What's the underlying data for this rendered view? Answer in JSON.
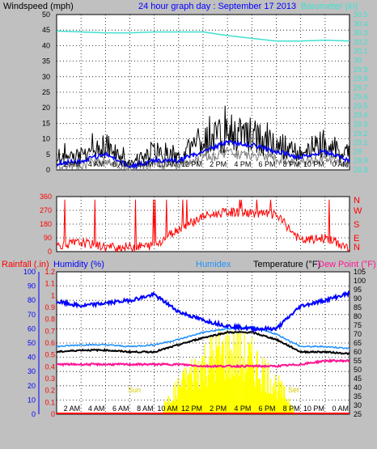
{
  "header": {
    "left_label": "Windspeed (mph)",
    "center_label": "24 hour graph day : September 17 2013",
    "right_label": "Barometer (in)"
  },
  "colors": {
    "background": "#c0c0c0",
    "plot_bg": "#ffffff",
    "wind": "#000000",
    "wind_avg": "#0000ff",
    "gust_gray": "#808080",
    "barometer": "#40e0d0",
    "direction": "#ff0000",
    "rain": "#ff0000",
    "humidity": "#0000ff",
    "humidex": "#1e90ff",
    "temperature": "#000000",
    "dewpoint": "#ff1493",
    "solar": "#ffff00",
    "rain_axis": "#ff0000",
    "humidity_axis": "#0000ff",
    "baro_axis": "#40e0d0"
  },
  "x_ticks": [
    "2 AM",
    "4 AM",
    "6 AM",
    "8 AM",
    "10 AM",
    "12 PM",
    "2 PM",
    "4 PM",
    "6 PM",
    "8 PM",
    "10 PM",
    "0 AM"
  ],
  "panel_wind": {
    "y_ticks": [
      "0",
      "5",
      "10",
      "15",
      "20",
      "25",
      "30",
      "35",
      "40",
      "45",
      "50"
    ],
    "baro_ticks": [
      "28.8",
      "28.9",
      "29",
      "29.1",
      "29.2",
      "29.3",
      "29.4",
      "29.5",
      "29.6",
      "29.7",
      "29.8",
      "29.9",
      "30",
      "30.1",
      "30.2",
      "30.3",
      "30.4",
      "30.5"
    ]
  },
  "panel_dir": {
    "y_ticks": [
      "0",
      "90",
      "180",
      "270",
      "360"
    ],
    "compass": [
      "N",
      "E",
      "S",
      "W",
      "N"
    ]
  },
  "panel_temp": {
    "rain_label": "Rainfall (.in)",
    "humidity_label": "Humidity (%)",
    "humidex_label": "Humidex",
    "temperature_label": "Temperature (°F)",
    "dewpoint_label": "Dew Point (°F)",
    "humidity_ticks": [
      "0",
      "10",
      "20",
      "30",
      "40",
      "50",
      "60",
      "70",
      "80",
      "90",
      "100"
    ],
    "rain_ticks": [
      "0",
      "0.1",
      "0.2",
      "0.3",
      "0.4",
      "0.5",
      "0.6",
      "0.7",
      "0.8",
      "0.9",
      "1",
      "1.1",
      "1.2"
    ],
    "temp_ticks": [
      "25",
      "30",
      "35",
      "40",
      "45",
      "50",
      "55",
      "60",
      "65",
      "70",
      "75",
      "80",
      "85",
      "90",
      "95",
      "100",
      "105"
    ],
    "sunrise_label": "Sun",
    "sunset_label": "Set"
  },
  "chart_data": [
    {
      "type": "line",
      "title": "24 hour graph day : September 17 2013",
      "ylabel": "Windspeed (mph)",
      "y2label": "Barometer (in)",
      "ylim": [
        0,
        50
      ],
      "y2lim": [
        28.8,
        30.5
      ],
      "x": [
        "0 AM",
        "2 AM",
        "4 AM",
        "6 AM",
        "8 AM",
        "10 AM",
        "12 PM",
        "2 PM",
        "4 PM",
        "6 PM",
        "8 PM",
        "10 PM",
        "0 AM"
      ],
      "series": [
        {
          "values": [
            3,
            5,
            8,
            2,
            6,
            4,
            9,
            12,
            11,
            8,
            6,
            9,
            4
          ]
        },
        {
          "values": [
            2,
            3,
            5,
            1,
            3,
            3,
            6,
            9,
            8,
            6,
            4,
            6,
            3
          ]
        },
        {
          "axis": "right",
          "values": [
            30.32,
            30.31,
            30.3,
            30.3,
            30.31,
            30.31,
            30.31,
            30.27,
            30.24,
            30.21,
            30.21,
            30.22,
            30.21
          ]
        }
      ],
      "grid": true
    },
    {
      "type": "scatter",
      "ylabel": "Wind direction",
      "ylim": [
        0,
        360
      ],
      "x": [
        "0 AM",
        "2 AM",
        "4 AM",
        "6 AM",
        "8 AM",
        "10 AM",
        "12 PM",
        "2 PM",
        "4 PM",
        "6 PM",
        "8 PM",
        "10 PM",
        "0 AM"
      ],
      "series": [
        {
          "values": [
            40,
            60,
            30,
            30,
            40,
            150,
            230,
            260,
            250,
            240,
            70,
            90,
            20
          ]
        }
      ],
      "grid": true
    },
    {
      "type": "line",
      "ylim": [
        0,
        100
      ],
      "y2lim": [
        25,
        105
      ],
      "y3lim": [
        0,
        1.2
      ],
      "x": [
        "0 AM",
        "2 AM",
        "4 AM",
        "6 AM",
        "8 AM",
        "10 AM",
        "12 PM",
        "2 PM",
        "4 PM",
        "6 PM",
        "8 PM",
        "10 PM",
        "0 AM"
      ],
      "series": [
        {
          "name": "Humidity (%)",
          "values": [
            79,
            76,
            78,
            80,
            84,
            72,
            66,
            62,
            60,
            60,
            76,
            80,
            85
          ]
        },
        {
          "name": "Humidex",
          "axis": "right",
          "values": [
            63,
            64,
            64,
            63,
            64,
            67,
            71,
            73,
            74,
            70,
            63,
            63,
            62
          ]
        },
        {
          "name": "Temperature (°F)",
          "axis": "right",
          "values": [
            60,
            61,
            61,
            60,
            60,
            64,
            68,
            71,
            71,
            67,
            60,
            60,
            59
          ]
        },
        {
          "name": "Dew Point (°F)",
          "axis": "right",
          "values": [
            53,
            53,
            53,
            53,
            53,
            53,
            52,
            52,
            52,
            52,
            53,
            55,
            55
          ]
        },
        {
          "name": "Rainfall (.in)",
          "values": [
            0,
            0,
            0,
            0,
            0,
            0,
            0,
            0,
            0,
            0,
            0,
            0,
            0
          ]
        }
      ],
      "grid": true
    }
  ]
}
